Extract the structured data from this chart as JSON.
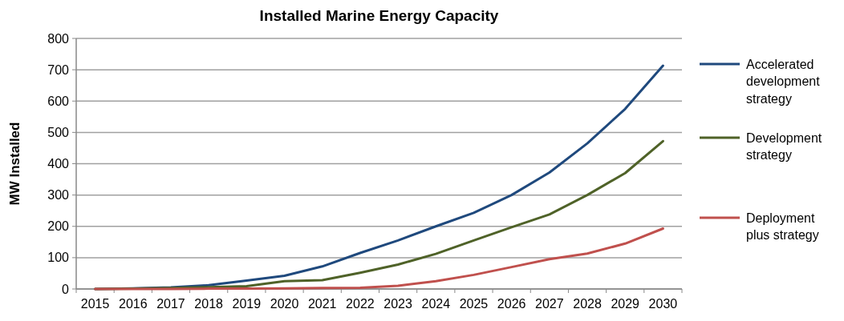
{
  "chart_data": {
    "type": "line",
    "title": "Installed Marine Energy Capacity",
    "ylabel": "MW Installed",
    "categories": [
      "2015",
      "2016",
      "2017",
      "2018",
      "2019",
      "2020",
      "2021",
      "2022",
      "2023",
      "2024",
      "2025",
      "2026",
      "2027",
      "2028",
      "2029",
      "2030"
    ],
    "series": [
      {
        "name": "Accelerated development strategy",
        "color": "#1f497d",
        "values": [
          0,
          2,
          5,
          12,
          27,
          42,
          72,
          115,
          155,
          200,
          243,
          300,
          372,
          465,
          575,
          713
        ]
      },
      {
        "name": "Development strategy",
        "color": "#4f6228",
        "values": [
          0,
          1,
          3,
          6,
          9,
          25,
          28,
          52,
          78,
          112,
          155,
          197,
          238,
          300,
          370,
          472
        ]
      },
      {
        "name": "Deployment plus strategy",
        "color": "#c0504d",
        "values": [
          0,
          0,
          0,
          1,
          1,
          2,
          3,
          4,
          10,
          25,
          45,
          70,
          95,
          113,
          145,
          193
        ]
      }
    ],
    "ylim": [
      0,
      800
    ],
    "yticks": [
      0,
      100,
      200,
      300,
      400,
      500,
      600,
      700,
      800
    ],
    "grid": "y",
    "legend": "right",
    "marker": "none",
    "line_style": "solid"
  }
}
